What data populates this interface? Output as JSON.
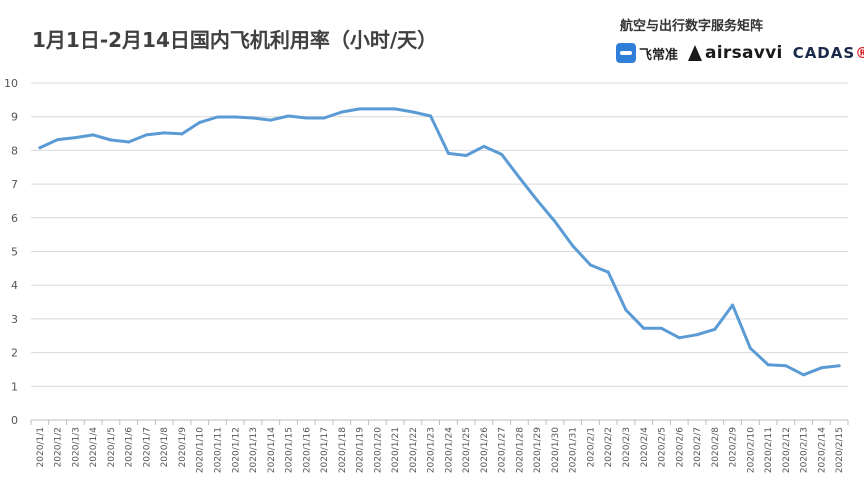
{
  "chart_data": {
    "type": "line",
    "title": "1月1日-2月14日国内飞机利用率（小时/天）",
    "ylim": [
      0,
      10
    ],
    "yticks": [
      0,
      1,
      2,
      3,
      4,
      5,
      6,
      7,
      8,
      9,
      10
    ],
    "grid": "horizontal",
    "line_color": "#5b9bd5",
    "categories": [
      "2020/1/1",
      "2020/1/2",
      "2020/1/3",
      "2020/1/4",
      "2020/1/5",
      "2020/1/6",
      "2020/1/7",
      "2020/1/8",
      "2020/1/9",
      "2020/1/10",
      "2020/1/11",
      "2020/1/12",
      "2020/1/13",
      "2020/1/14",
      "2020/1/15",
      "2020/1/16",
      "2020/1/17",
      "2020/1/18",
      "2020/1/19",
      "2020/1/20",
      "2020/1/21",
      "2020/1/22",
      "2020/1/23",
      "2020/1/24",
      "2020/1/25",
      "2020/1/26",
      "2020/1/27",
      "2020/1/28",
      "2020/1/29",
      "2020/1/30",
      "2020/1/31",
      "2020/2/1",
      "2020/2/2",
      "2020/2/3",
      "2020/2/4",
      "2020/2/5",
      "2020/2/6",
      "2020/2/7",
      "2020/2/8",
      "2020/2/9",
      "2020/2/10",
      "2020/2/11",
      "2020/2/12",
      "2020/2/13",
      "2020/2/14",
      "2020/2/15"
    ],
    "values": [
      8.08,
      8.32,
      8.38,
      8.46,
      8.31,
      8.25,
      8.46,
      8.52,
      8.49,
      8.83,
      8.99,
      8.99,
      8.96,
      8.9,
      9.02,
      8.96,
      8.96,
      9.14,
      9.23,
      9.23,
      9.23,
      9.14,
      9.02,
      7.91,
      7.85,
      8.12,
      7.88,
      7.19,
      6.52,
      5.89,
      5.17,
      4.6,
      4.39,
      3.26,
      2.72,
      2.72,
      2.44,
      2.53,
      2.69,
      3.41,
      2.13,
      1.64,
      1.61,
      1.34,
      1.55,
      1.61
    ]
  },
  "header": {
    "brand_text": "航空与出行数字服务矩阵",
    "logos": {
      "feichangzhun": "飞常准",
      "airsavvi": "airsavvi",
      "cadas_main": "CADAS",
      "cadas_mark": "®"
    }
  }
}
